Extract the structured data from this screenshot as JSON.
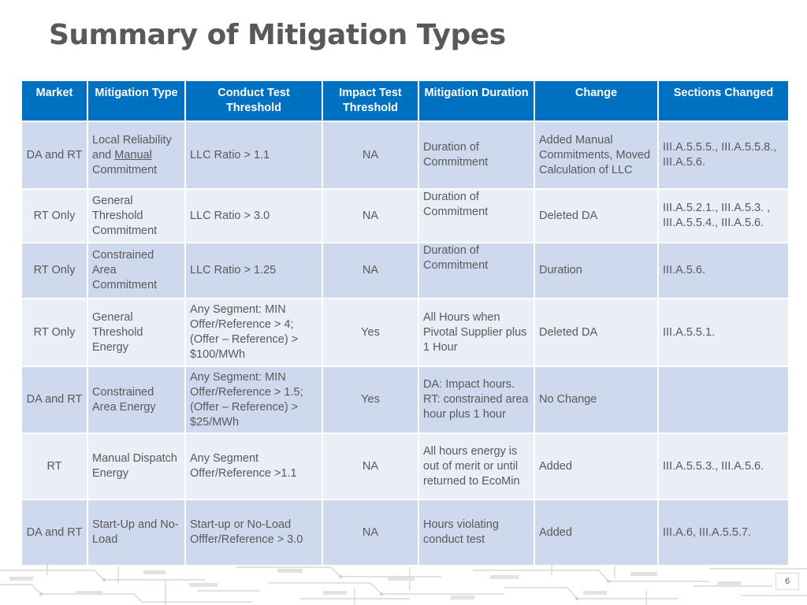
{
  "title": "Summary of Mitigation Types",
  "headers": {
    "market": "Market",
    "mitigation_type": "Mitigation Type",
    "conduct_test": "Conduct Test Threshold",
    "impact_test": "Impact Test Threshold",
    "duration": "Mitigation Duration",
    "change": "Change",
    "sections": "Sections Changed"
  },
  "rows": [
    {
      "market": "DA and RT",
      "type_pre": "Local Reliability and ",
      "type_underline": "Manual",
      "type_post": " Commitment",
      "conduct": "LLC Ratio > 1.1",
      "impact": "NA",
      "duration": "Duration of Commitment",
      "change": "Added Manual Commitments, Moved Calculation of  LLC",
      "sections": "III.A.5.5.5., III.A.5.5.8., III.A.5.6."
    },
    {
      "market": "RT Only",
      "type": "General Threshold Commitment",
      "conduct": "LLC Ratio > 3.0",
      "impact": "NA",
      "duration": "Duration of Commitment",
      "change": "Deleted DA",
      "sections": "III.A.5.2.1., III.A.5.3. , III.A.5.5.4., III.A.5.6."
    },
    {
      "market": "RT Only",
      "type": "Constrained Area Commitment",
      "conduct": "LLC Ratio > 1.25",
      "impact": "NA",
      "duration": "Duration of Commitment",
      "change": "Duration",
      "sections": "III.A.5.6."
    },
    {
      "market": "RT Only",
      "type": "General Threshold Energy",
      "conduct": "Any Segment: MIN Offer/Reference > 4; (Offer – Reference) > $100/MWh",
      "impact": "Yes",
      "duration": "All Hours when Pivotal Supplier plus 1 Hour",
      "change": "Deleted DA",
      "sections": "III.A.5.5.1."
    },
    {
      "market": "DA and RT",
      "type": "Constrained Area Energy",
      "conduct": "Any Segment: MIN Offer/Reference > 1.5; (Offer – Reference) > $25/MWh",
      "impact": "Yes",
      "duration": "DA: Impact hours. RT: constrained area hour plus 1 hour",
      "change": "No Change",
      "sections": ""
    },
    {
      "market": "RT",
      "type": "Manual Dispatch Energy",
      "conduct": "Any Segment Offer/Reference >1.1",
      "impact": "NA",
      "duration": "All hours energy is out of merit or until returned to EcoMin",
      "change": "Added",
      "sections": "III.A.5.5.3., III.A.5.6."
    },
    {
      "market": "DA and RT",
      "type": "Start-Up and No-Load",
      "conduct": "Start-up or No-Load Offfer/Reference > 3.0",
      "impact": "NA",
      "duration": "Hours violating conduct test",
      "change": "Added",
      "sections": "III.A.6, III.A.5.5.7."
    }
  ],
  "page_number": "6",
  "colors": {
    "header_bg": "#0070c0",
    "row_dark": "#cfd9ed",
    "row_light": "#e9eef7",
    "title": "#595959"
  }
}
